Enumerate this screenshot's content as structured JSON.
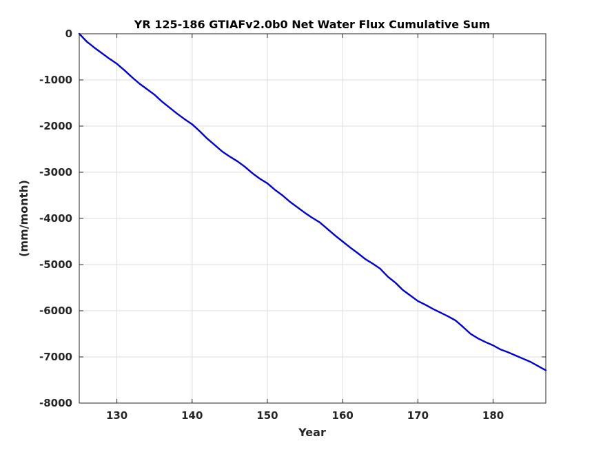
{
  "chart_data": {
    "type": "line",
    "title": "YR 125-186 GTIAFv2.0b0 Net Water Flux Cumulative Sum",
    "xlabel": "Year",
    "ylabel": "(mm/month)",
    "xlim": [
      125,
      187
    ],
    "ylim": [
      -8000,
      0
    ],
    "xticks": [
      130,
      140,
      150,
      160,
      170,
      180
    ],
    "yticks": [
      0,
      -1000,
      -2000,
      -3000,
      -4000,
      -5000,
      -6000,
      -7000,
      -8000
    ],
    "grid": true,
    "line_color": "#0000CC",
    "series": [
      {
        "x": [
          125,
          126,
          127,
          128,
          129,
          130,
          131,
          132,
          133,
          134,
          135,
          136,
          137,
          138,
          139,
          140,
          141,
          142,
          143,
          144,
          145,
          146,
          147,
          148,
          149,
          150,
          151,
          152,
          153,
          154,
          155,
          156,
          157,
          158,
          159,
          160,
          161,
          162,
          163,
          164,
          165,
          166,
          167,
          168,
          169,
          170,
          171,
          172,
          173,
          174,
          175,
          176,
          177,
          178,
          179,
          180,
          181,
          182,
          183,
          184,
          185,
          186,
          187
        ],
        "y": [
          0,
          -170,
          -300,
          -420,
          -540,
          -650,
          -790,
          -940,
          -1080,
          -1200,
          -1320,
          -1470,
          -1600,
          -1730,
          -1850,
          -1960,
          -2110,
          -2270,
          -2410,
          -2550,
          -2660,
          -2760,
          -2880,
          -3020,
          -3140,
          -3240,
          -3380,
          -3500,
          -3640,
          -3760,
          -3880,
          -3990,
          -4090,
          -4230,
          -4370,
          -4500,
          -4630,
          -4750,
          -4880,
          -4980,
          -5090,
          -5260,
          -5390,
          -5550,
          -5670,
          -5790,
          -5870,
          -5960,
          -6040,
          -6120,
          -6210,
          -6350,
          -6500,
          -6600,
          -6680,
          -6750,
          -6840,
          -6900,
          -6970,
          -7040,
          -7110,
          -7200,
          -7290
        ]
      }
    ]
  }
}
